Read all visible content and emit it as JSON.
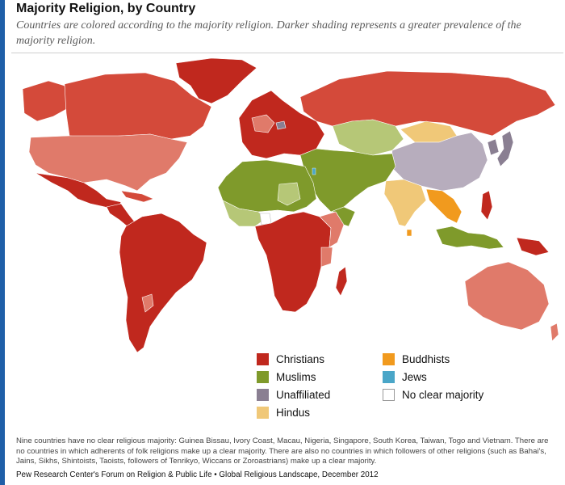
{
  "header": {
    "title": "Majority Religion, by Country",
    "subtitle": "Countries are colored according to the majority religion. Darker shading represents a greater prevalence of the majority religion."
  },
  "colors": {
    "christians_dark": "#c0281e",
    "christians_mid": "#d44a3a",
    "christians_light": "#e07a6a",
    "muslims_dark": "#7f9a2b",
    "muslims_light": "#b6c777",
    "unaffiliated": "#8a7f92",
    "unaffiliated_light": "#b7adbd",
    "hindus": "#f0c878",
    "buddhists": "#f19a1e",
    "jews": "#4aa6c8",
    "no_clear_majority": "#ffffff",
    "left_bar": "#1f5fa8"
  },
  "legend": {
    "items": [
      {
        "label": "Christians",
        "color": "#c0281e"
      },
      {
        "label": "Muslims",
        "color": "#7f9a2b"
      },
      {
        "label": "Unaffiliated",
        "color": "#8a7f92"
      },
      {
        "label": "Hindus",
        "color": "#f0c878"
      },
      {
        "label": "Buddhists",
        "color": "#f19a1e"
      },
      {
        "label": "Jews",
        "color": "#4aa6c8"
      },
      {
        "label": "No clear majority",
        "color": "#ffffff"
      }
    ]
  },
  "footer": {
    "note": "Nine countries have no clear religious majority: Guinea Bissau, Ivory Coast, Macau, Nigeria, Singapore, South Korea, Taiwan, Togo and Vietnam. There are no countries in which adherents of folk religions make up a clear majority. There are also no countries in which followers of other religions (such as Bahai's, Jains, Sikhs, Shintoists, Taoists, followers of Tenrikyo, Wiccans or Zoroastrians) make up a clear majority.",
    "source": "Pew Research Center's Forum on Religion & Public Life • Global Religious Landscape, December 2012"
  }
}
